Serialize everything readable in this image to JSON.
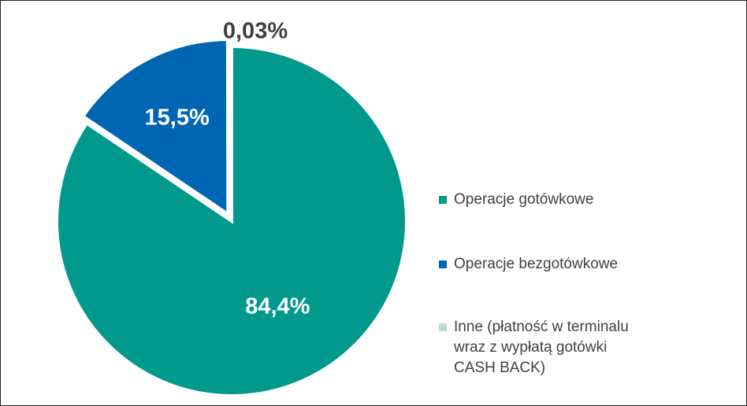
{
  "chart_data": {
    "type": "pie",
    "title": "",
    "slices": [
      {
        "name": "Operacje gotówkowe",
        "value": 84.4,
        "label": "84,4%",
        "color": "#00998C",
        "label_color": "#ffffff"
      },
      {
        "name": "Operacje bezgotówkowe",
        "value": 15.5,
        "label": "15,5%",
        "color": "#0066B3",
        "label_color": "#ffffff"
      },
      {
        "name": "Inne (płatność w terminalu wraz z wypłatą gotówki CASH BACK)",
        "value": 0.03,
        "label": "0,03%",
        "color": "#B7DED8",
        "label_color": "#404040"
      }
    ],
    "legend_position": "right",
    "start_angle_deg": 0,
    "direction": "clockwise",
    "exploded": true
  },
  "legend": {
    "items": [
      {
        "label": "Operacje gotówkowe",
        "color": "#00998C"
      },
      {
        "label": "Operacje bezgotówkowe",
        "color": "#0066B3"
      },
      {
        "label": "Inne (płatność w terminalu\nwraz z wypłatą gotówki\nCASH BACK)",
        "color": "#B7DED8"
      }
    ]
  }
}
